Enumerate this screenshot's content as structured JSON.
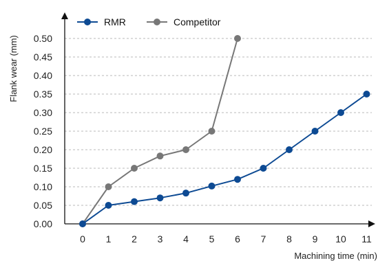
{
  "chart_data": {
    "type": "line",
    "title": "",
    "xlabel": "Machining time (min)",
    "ylabel": "Flank wear (mm)",
    "xlim": [
      0,
      11
    ],
    "ylim": [
      0,
      0.5
    ],
    "x_ticks": [
      "0",
      "1",
      "2",
      "3",
      "4",
      "5",
      "6",
      "7",
      "8",
      "9",
      "10",
      "11"
    ],
    "y_ticks": [
      "0.00",
      "0.05",
      "0.10",
      "0.15",
      "0.20",
      "0.25",
      "0.30",
      "0.35",
      "0.40",
      "0.45",
      "0.50"
    ],
    "grid": "horizontal dashed",
    "legend": "top-left",
    "series": [
      {
        "name": "RMR",
        "color": "#0d4a93",
        "x": [
          0,
          1,
          2,
          3,
          4,
          5,
          6,
          7,
          8,
          9,
          10,
          11
        ],
        "y": [
          0.0,
          0.05,
          0.06,
          0.07,
          0.083,
          0.102,
          0.12,
          0.15,
          0.2,
          0.25,
          0.3,
          0.35
        ]
      },
      {
        "name": "Competitor",
        "color": "#777777",
        "x": [
          0,
          1,
          2,
          3,
          4,
          5,
          6
        ],
        "y": [
          0.0,
          0.1,
          0.15,
          0.183,
          0.2,
          0.25,
          0.5
        ]
      }
    ]
  }
}
